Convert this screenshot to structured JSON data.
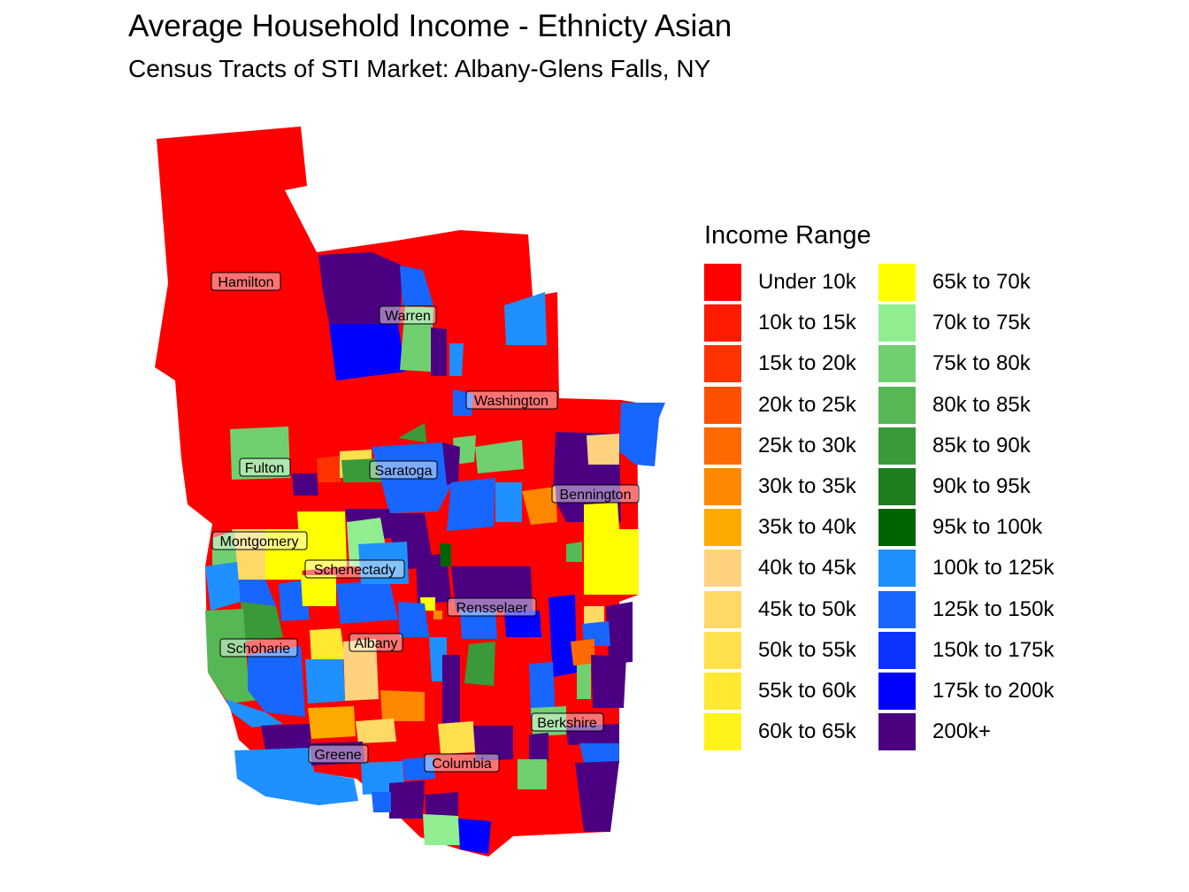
{
  "title": "Average Household Income - Ethnicty Asian",
  "subtitle": "Census Tracts of STI Market: Albany-Glens Falls, NY",
  "legend": {
    "title": "Income Range",
    "items": [
      {
        "label": "Under 10k",
        "color": "#ff0000"
      },
      {
        "label": "10k to 15k",
        "color": "#ff1a00"
      },
      {
        "label": "15k to 20k",
        "color": "#ff3300"
      },
      {
        "label": "20k to 25k",
        "color": "#ff5000"
      },
      {
        "label": "25k to 30k",
        "color": "#ff6a00"
      },
      {
        "label": "30k to 35k",
        "color": "#ff8800"
      },
      {
        "label": "35k to 40k",
        "color": "#ffaa00"
      },
      {
        "label": "40k to 45k",
        "color": "#ffd27f"
      },
      {
        "label": "45k to 50k",
        "color": "#ffd966"
      },
      {
        "label": "50k to 55k",
        "color": "#ffe14d"
      },
      {
        "label": "55k to 60k",
        "color": "#ffe933"
      },
      {
        "label": "60k to 65k",
        "color": "#fff21a"
      },
      {
        "label": "65k to 70k",
        "color": "#ffff00"
      },
      {
        "label": "70k to 75k",
        "color": "#90ee90"
      },
      {
        "label": "75k to 80k",
        "color": "#70d070"
      },
      {
        "label": "80k to 85k",
        "color": "#55b855"
      },
      {
        "label": "85k to 90k",
        "color": "#3a9a3a"
      },
      {
        "label": "90k to 95k",
        "color": "#1e7d1e"
      },
      {
        "label": "95k to 100k",
        "color": "#006400"
      },
      {
        "label": "100k to 125k",
        "color": "#1e90ff"
      },
      {
        "label": "125k to 150k",
        "color": "#1766ff"
      },
      {
        "label": "150k to 175k",
        "color": "#0a33ff"
      },
      {
        "label": "175k to 200k",
        "color": "#0000ff"
      },
      {
        "label": "200k+",
        "color": "#4b0082"
      }
    ]
  },
  "counties": [
    {
      "name": "Hamilton"
    },
    {
      "name": "Warren"
    },
    {
      "name": "Washington"
    },
    {
      "name": "Fulton"
    },
    {
      "name": "Saratoga"
    },
    {
      "name": "Bennington"
    },
    {
      "name": "Montgomery"
    },
    {
      "name": "Schenectady"
    },
    {
      "name": "Rensselaer"
    },
    {
      "name": "Albany"
    },
    {
      "name": "Schoharie"
    },
    {
      "name": "Berkshire"
    },
    {
      "name": "Greene"
    },
    {
      "name": "Columbia"
    }
  ]
}
